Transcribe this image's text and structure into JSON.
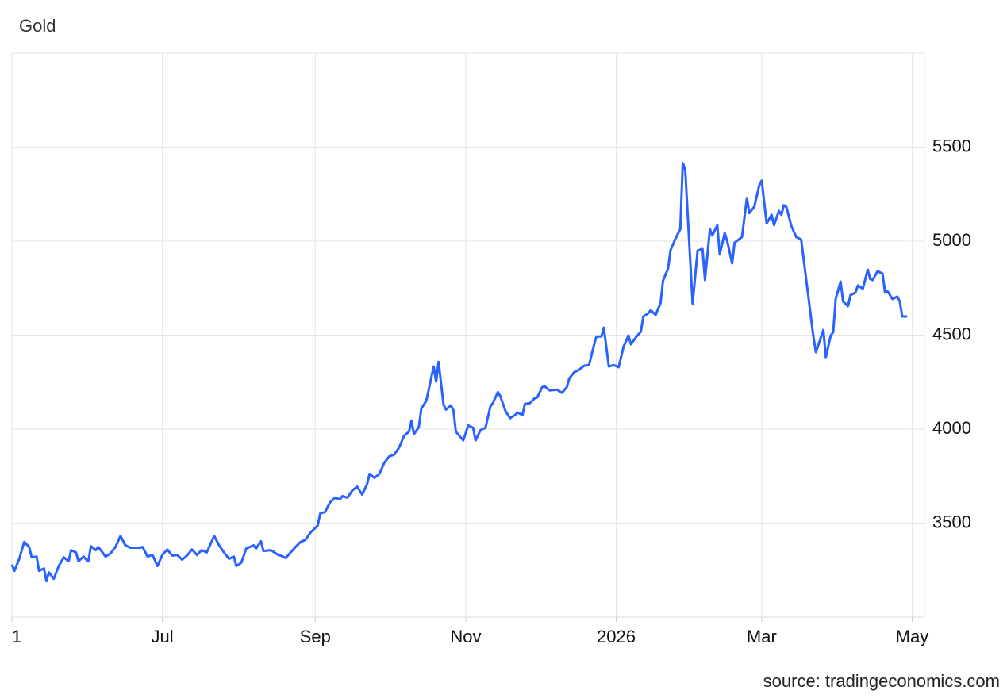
{
  "chart_data": {
    "type": "line",
    "title": "Gold",
    "source": "source: tradingeconomics.com",
    "x": [
      0,
      1,
      3,
      5,
      7,
      8,
      10,
      11,
      13,
      14,
      15,
      17,
      19,
      21,
      23,
      24,
      26,
      27,
      29,
      31,
      32,
      34,
      35,
      38,
      40,
      42,
      44,
      46,
      48,
      52,
      53,
      55,
      57,
      59,
      61,
      63,
      65,
      67,
      69,
      71,
      73,
      75,
      77,
      79,
      82,
      84,
      86,
      88,
      90,
      91,
      93,
      95,
      98,
      99,
      101,
      102,
      105,
      108,
      110,
      111,
      113,
      115,
      117,
      119,
      121,
      124,
      125,
      127,
      129,
      131,
      133,
      134,
      136,
      138,
      140,
      142,
      144,
      145,
      147,
      149,
      151,
      153,
      155,
      157,
      159,
      161,
      162,
      163,
      165,
      166,
      168,
      169,
      171,
      172,
      173,
      175,
      176,
      178,
      179,
      180,
      183,
      185,
      187,
      188,
      190,
      192,
      194,
      195,
      197,
      198,
      200,
      202,
      204,
      205,
      207,
      208,
      210,
      212,
      213,
      215,
      216,
      218,
      221,
      223,
      225,
      226,
      228,
      230,
      232,
      234,
      236,
      237,
      239,
      240,
      242,
      244,
      246,
      248,
      250,
      251,
      253,
      255,
      256,
      258,
      259,
      261,
      263,
      264,
      266,
      267,
      269,
      271,
      272,
      273,
      275,
      276,
      278,
      280,
      281,
      283,
      284,
      286,
      287,
      289,
      290,
      292,
      293,
      296,
      298,
      299,
      301,
      303,
      304,
      306,
      308,
      309,
      311,
      312,
      313,
      314,
      316,
      318,
      320,
      325,
      326,
      329,
      330,
      332,
      333,
      334,
      336,
      337,
      339,
      340,
      342,
      343,
      345,
      347,
      348,
      349,
      351,
      353,
      354,
      355,
      357,
      359,
      360,
      361,
      363
    ],
    "series": [
      {
        "name": "Gold",
        "color": "#2962ff",
        "values": [
          3280,
          3246,
          3310,
          3400,
          3373,
          3318,
          3322,
          3246,
          3259,
          3191,
          3238,
          3204,
          3272,
          3318,
          3297,
          3356,
          3344,
          3297,
          3322,
          3297,
          3377,
          3356,
          3373,
          3322,
          3339,
          3373,
          3432,
          3382,
          3369,
          3369,
          3373,
          3322,
          3331,
          3272,
          3331,
          3360,
          3327,
          3331,
          3306,
          3327,
          3360,
          3331,
          3356,
          3344,
          3432,
          3382,
          3344,
          3310,
          3322,
          3272,
          3289,
          3365,
          3382,
          3365,
          3403,
          3352,
          3356,
          3331,
          3322,
          3314,
          3344,
          3373,
          3399,
          3411,
          3449,
          3487,
          3551,
          3559,
          3610,
          3635,
          3627,
          3644,
          3635,
          3673,
          3694,
          3652,
          3707,
          3762,
          3741,
          3762,
          3821,
          3855,
          3864,
          3902,
          3965,
          3986,
          4045,
          3973,
          4011,
          4109,
          4151,
          4210,
          4333,
          4253,
          4358,
          4130,
          4104,
          4126,
          4100,
          3986,
          3940,
          4020,
          4007,
          3940,
          3995,
          4007,
          4121,
          4138,
          4197,
          4176,
          4100,
          4058,
          4075,
          4088,
          4075,
          4134,
          4138,
          4164,
          4168,
          4223,
          4227,
          4206,
          4210,
          4193,
          4223,
          4269,
          4303,
          4316,
          4337,
          4341,
          4447,
          4493,
          4493,
          4540,
          4333,
          4341,
          4329,
          4439,
          4498,
          4451,
          4489,
          4519,
          4599,
          4616,
          4633,
          4607,
          4671,
          4789,
          4853,
          4950,
          5013,
          5064,
          5415,
          5381,
          4903,
          4667,
          4950,
          4958,
          4793,
          5064,
          5030,
          5085,
          4929,
          5043,
          5001,
          4882,
          4992,
          5022,
          5229,
          5149,
          5183,
          5297,
          5322,
          5094,
          5140,
          5085,
          5161,
          5140,
          5191,
          5183,
          5081,
          5022,
          5009,
          4489,
          4409,
          4527,
          4383,
          4498,
          4515,
          4692,
          4785,
          4679,
          4654,
          4713,
          4726,
          4764,
          4747,
          4848,
          4798,
          4793,
          4840,
          4827,
          4726,
          4734,
          4692,
          4705,
          4679,
          4599,
          4599
        ]
      }
    ],
    "xlim": [
      0,
      370
    ],
    "xticks": [
      {
        "value": 0,
        "label": "1"
      },
      {
        "value": 61,
        "label": "Jul"
      },
      {
        "value": 123,
        "label": "Sep"
      },
      {
        "value": 184,
        "label": "Nov"
      },
      {
        "value": 245,
        "label": "2026"
      },
      {
        "value": 304,
        "label": "Mar"
      },
      {
        "value": 365,
        "label": "May"
      }
    ],
    "ylim": [
      3000,
      6000
    ],
    "yticks": [
      3500,
      4000,
      4500,
      5000,
      5500
    ],
    "grid": true
  }
}
